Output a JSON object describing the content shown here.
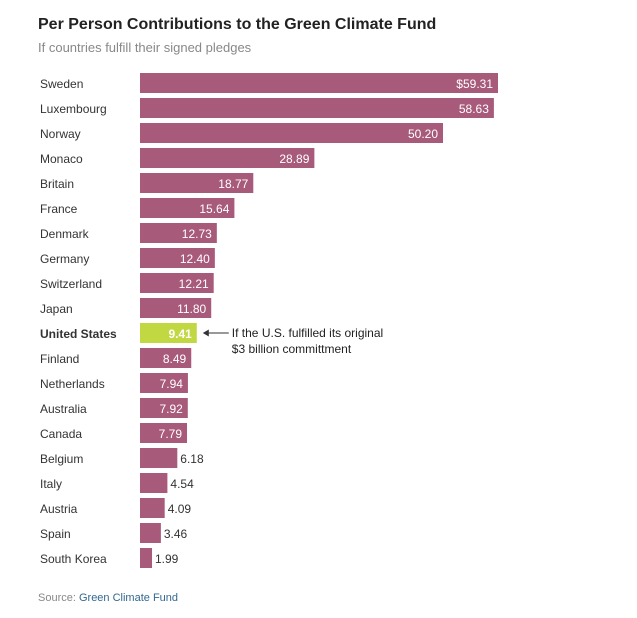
{
  "chart_data": {
    "type": "bar",
    "orientation": "horizontal",
    "title": "Per Person Contributions to the Green Climate Fund",
    "subtitle": "If countries fulfill their signed pledges",
    "categories": [
      "Sweden",
      "Luxembourg",
      "Norway",
      "Monaco",
      "Britain",
      "France",
      "Denmark",
      "Germany",
      "Switzerland",
      "Japan",
      "United States",
      "Finland",
      "Netherlands",
      "Australia",
      "Canada",
      "Belgium",
      "Italy",
      "Austria",
      "Spain",
      "South Korea"
    ],
    "values": [
      59.31,
      58.63,
      50.2,
      28.89,
      18.77,
      15.64,
      12.73,
      12.4,
      12.21,
      11.8,
      9.41,
      8.49,
      7.94,
      7.92,
      7.79,
      6.18,
      4.54,
      4.09,
      3.46,
      1.99
    ],
    "value_labels": [
      "$59.31",
      "58.63",
      "50.20",
      "28.89",
      "18.77",
      "15.64",
      "12.73",
      "12.40",
      "12.21",
      "11.80",
      "9.41",
      "8.49",
      "7.94",
      "7.92",
      "7.79",
      "6.18",
      "4.54",
      "4.09",
      "3.46",
      "1.99"
    ],
    "highlight_category": "United States",
    "annotation": {
      "category": "United States",
      "lines": [
        "If the U.S. fulfilled its original",
        "$3 billion committment"
      ]
    },
    "xlim": [
      0,
      59.31
    ],
    "xlabel": "",
    "ylabel": "",
    "grid": false,
    "colors": {
      "bar": "#a85a7a",
      "highlight": "#c2d842",
      "label_inside": "#ffffff",
      "label_outside": "#333333",
      "category": "#333333"
    }
  },
  "source": {
    "prefix": "Source: ",
    "name": "Green Climate Fund"
  }
}
